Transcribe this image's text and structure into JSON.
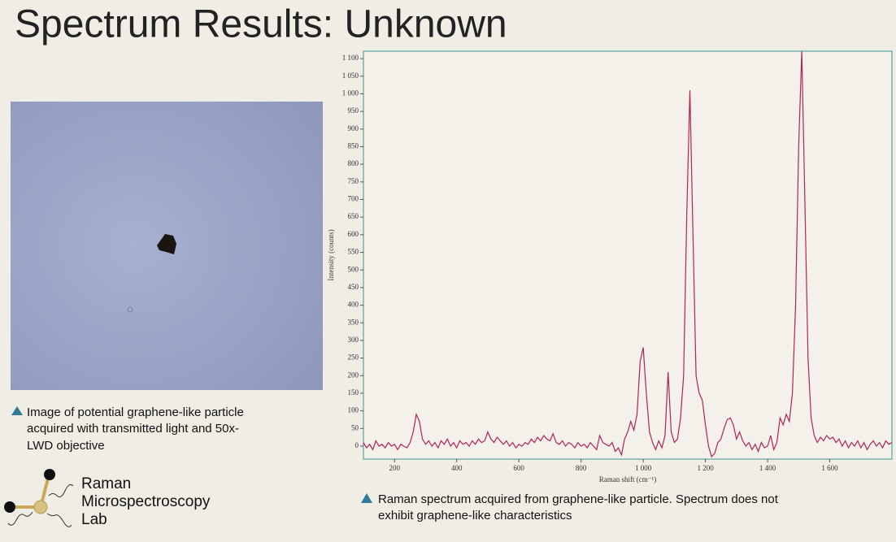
{
  "header": {
    "title": "Spectrum Results: Unknown"
  },
  "image_caption": [
    "Image of potential graphene-like particle",
    "acquired with transmitted light and 50x-",
    "LWD objective"
  ],
  "logo": [
    "Raman",
    "Microspectroscopy",
    "Lab"
  ],
  "chart_caption": [
    "Raman spectrum acquired from graphene-like particle. Spectrum does not",
    "exhibit graphene-like characteristics"
  ],
  "chart_data": {
    "type": "line",
    "x_label": "Raman shift (cm⁻¹)",
    "y_label": "Intensity (counts)",
    "color": "#b0245a",
    "xlim": [
      100,
      1800
    ],
    "ylim": [
      -37,
      1121
    ],
    "xticks": [
      200,
      400,
      600,
      800,
      {
        "value": 1000,
        "label": "1 000"
      },
      {
        "value": 1200,
        "label": "1 200"
      },
      {
        "value": 1400,
        "label": "1 400"
      },
      {
        "value": 1600,
        "label": "1 600"
      }
    ],
    "yticks": [
      0,
      50,
      100,
      150,
      200,
      250,
      300,
      350,
      400,
      450,
      500,
      550,
      600,
      650,
      700,
      750,
      800,
      850,
      900,
      950,
      {
        "value": 1000,
        "label": "1 000"
      },
      {
        "value": 1050,
        "label": "1 050"
      },
      {
        "value": 1100,
        "label": "1 100"
      }
    ],
    "x": [
      100,
      110,
      120,
      130,
      140,
      150,
      160,
      170,
      180,
      190,
      200,
      210,
      220,
      230,
      240,
      250,
      260,
      270,
      280,
      290,
      300,
      310,
      320,
      330,
      340,
      350,
      360,
      370,
      380,
      390,
      400,
      410,
      420,
      430,
      440,
      450,
      460,
      470,
      480,
      490,
      500,
      510,
      520,
      530,
      540,
      550,
      560,
      570,
      580,
      590,
      600,
      610,
      620,
      630,
      640,
      650,
      660,
      670,
      680,
      690,
      700,
      710,
      720,
      730,
      740,
      750,
      760,
      770,
      780,
      790,
      800,
      810,
      820,
      830,
      840,
      850,
      860,
      870,
      880,
      890,
      900,
      910,
      920,
      930,
      940,
      950,
      960,
      970,
      980,
      990,
      1000,
      1010,
      1020,
      1030,
      1040,
      1050,
      1060,
      1070,
      1080,
      1090,
      1100,
      1110,
      1120,
      1130,
      1140,
      1150,
      1160,
      1170,
      1180,
      1190,
      1200,
      1210,
      1220,
      1230,
      1240,
      1250,
      1260,
      1270,
      1280,
      1290,
      1300,
      1310,
      1320,
      1330,
      1340,
      1350,
      1360,
      1370,
      1380,
      1390,
      1400,
      1410,
      1420,
      1430,
      1440,
      1450,
      1460,
      1470,
      1480,
      1490,
      1500,
      1510,
      1520,
      1530,
      1540,
      1550,
      1560,
      1570,
      1580,
      1590,
      1600,
      1610,
      1620,
      1630,
      1640,
      1650,
      1660,
      1670,
      1680,
      1690,
      1700,
      1710,
      1720,
      1730,
      1740,
      1750,
      1760,
      1770,
      1780,
      1790,
      1800
    ],
    "values": [
      10,
      -5,
      5,
      -10,
      15,
      0,
      5,
      -5,
      10,
      0,
      5,
      -10,
      5,
      0,
      -5,
      10,
      40,
      90,
      70,
      20,
      5,
      15,
      0,
      10,
      -5,
      15,
      5,
      20,
      0,
      10,
      -5,
      15,
      5,
      10,
      0,
      15,
      5,
      20,
      10,
      15,
      40,
      20,
      10,
      25,
      15,
      5,
      15,
      0,
      10,
      -5,
      5,
      0,
      10,
      5,
      20,
      10,
      25,
      15,
      30,
      20,
      15,
      35,
      10,
      5,
      15,
      0,
      10,
      5,
      -5,
      10,
      0,
      5,
      -5,
      10,
      0,
      -10,
      30,
      10,
      5,
      0,
      10,
      -15,
      -5,
      -25,
      20,
      40,
      70,
      45,
      90,
      240,
      280,
      150,
      40,
      10,
      -10,
      15,
      -5,
      30,
      210,
      40,
      10,
      20,
      80,
      200,
      650,
      1010,
      600,
      200,
      150,
      130,
      60,
      0,
      -30,
      -20,
      10,
      20,
      50,
      75,
      80,
      60,
      20,
      40,
      15,
      0,
      10,
      -10,
      5,
      -15,
      10,
      -5,
      0,
      30,
      -10,
      10,
      80,
      60,
      90,
      70,
      150,
      400,
      850,
      1120,
      700,
      250,
      80,
      30,
      10,
      25,
      15,
      30,
      20,
      25,
      10,
      20,
      0,
      15,
      -5,
      10,
      0,
      15,
      -5,
      10,
      -10,
      5,
      15,
      0,
      10,
      -5,
      15,
      5,
      10
    ]
  }
}
